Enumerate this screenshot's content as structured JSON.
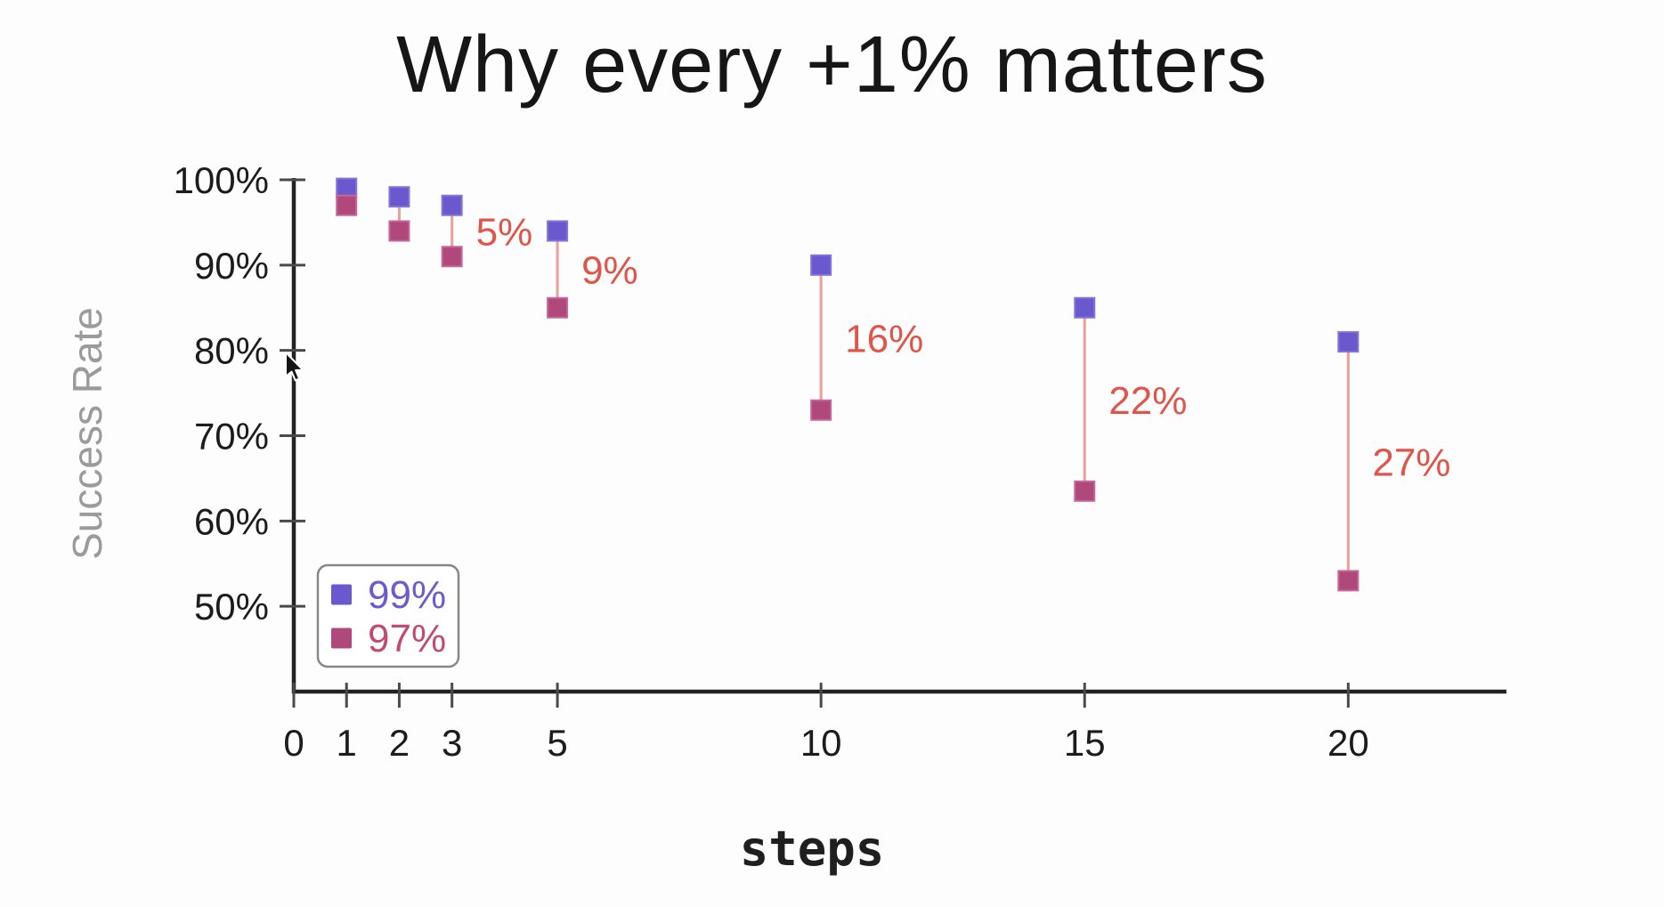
{
  "chart_data": {
    "type": "scatter",
    "title": "Why every +1% matters",
    "xlabel": "steps",
    "ylabel": "Success Rate",
    "x": [
      1,
      2,
      3,
      5,
      10,
      15,
      20
    ],
    "series": [
      {
        "name": "99%",
        "color": "#6a59ce",
        "edge_color": "#8374da",
        "legend_text_color": "#6a5bd1",
        "values": [
          99,
          98,
          97,
          94,
          90,
          85,
          81
        ]
      },
      {
        "name": "97%",
        "color": "#b0487c",
        "edge_color": "#c4699a",
        "legend_text_color": "#c24b70",
        "values": [
          97,
          94,
          91,
          85,
          73,
          63.5,
          53
        ]
      }
    ],
    "gap_labels": [
      {
        "x": 3,
        "text": "5%"
      },
      {
        "x": 5,
        "text": "9%"
      },
      {
        "x": 10,
        "text": "16%"
      },
      {
        "x": 15,
        "text": "22%"
      },
      {
        "x": 20,
        "text": "27%"
      }
    ],
    "gap_label_color": "#e2544a",
    "connector_color": "#eb9f98",
    "axis_color": "#222222",
    "tick_color": "#4a4a4a",
    "xticks": {
      "values": [
        0,
        1,
        2,
        3,
        5,
        10,
        15,
        20
      ],
      "labels": [
        "0",
        "1",
        "2",
        "3",
        "5",
        "10",
        "15",
        "20"
      ]
    },
    "yticks": {
      "values": [
        100,
        90,
        80,
        70,
        60,
        50
      ],
      "labels": [
        "100%",
        "90%",
        "80%",
        "70%",
        "60%",
        "50%"
      ]
    },
    "xlim": [
      0,
      23
    ],
    "ylim": [
      40,
      100
    ],
    "grid": false,
    "legend": {
      "position": "lower-left",
      "border_color": "#878787",
      "background": "#ffffff"
    }
  },
  "cursor": {
    "icon": "arrow-pointer"
  }
}
